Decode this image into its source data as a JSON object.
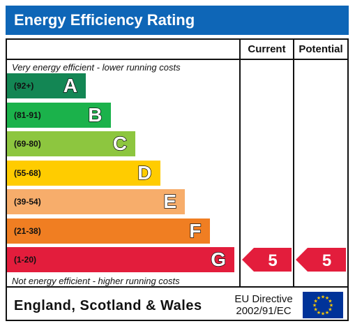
{
  "title": "Energy Efficiency Rating",
  "columns": {
    "current": "Current",
    "potential": "Potential"
  },
  "notes": {
    "top": "Very energy efficient - lower running costs",
    "bottom": "Not energy efficient - higher running costs"
  },
  "chart_data": {
    "type": "bar",
    "title": "Energy Efficiency Rating",
    "bands": [
      {
        "letter": "A",
        "range": "(92+)",
        "color": "#138654"
      },
      {
        "letter": "B",
        "range": "(81-91)",
        "color": "#1bb24b"
      },
      {
        "letter": "C",
        "range": "(69-80)",
        "color": "#8dc63f"
      },
      {
        "letter": "D",
        "range": "(55-68)",
        "color": "#ffcc00"
      },
      {
        "letter": "E",
        "range": "(39-54)",
        "color": "#f7ad6b"
      },
      {
        "letter": "F",
        "range": "(21-38)",
        "color": "#f07e22"
      },
      {
        "letter": "G",
        "range": "(1-20)",
        "color": "#e31d3c"
      }
    ],
    "current": {
      "value": 5,
      "band": "G"
    },
    "potential": {
      "value": 5,
      "band": "G"
    }
  },
  "footer": {
    "country": "England, Scotland & Wales",
    "directive_line1": "EU Directive",
    "directive_line2": "2002/91/EC"
  }
}
